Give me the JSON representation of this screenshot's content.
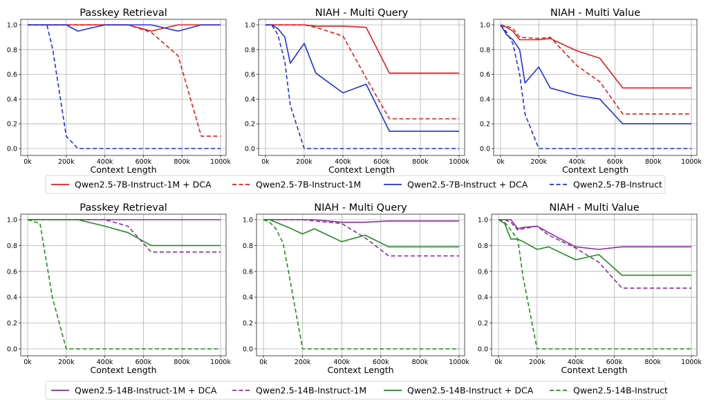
{
  "figure": {
    "legends": [
      {
        "entries": [
          {
            "label": "Qwen2.5-7B-Instruct-1M + DCA",
            "color": "#e31a1c",
            "style": "solid"
          },
          {
            "label": "Qwen2.5-7B-Instruct-1M",
            "color": "#e31a1c",
            "style": "dashed"
          },
          {
            "label": "Qwen2.5-7B-Instruct + DCA",
            "color": "#1f2fdc",
            "style": "solid"
          },
          {
            "label": "Qwen2.5-7B-Instruct",
            "color": "#1f2fdc",
            "style": "dashed"
          }
        ]
      },
      {
        "entries": [
          {
            "label": "Qwen2.5-14B-Instruct-1M + DCA",
            "color": "#8b2a9e",
            "style": "solid"
          },
          {
            "label": "Qwen2.5-14B-Instruct-1M",
            "color": "#8b2a9e",
            "style": "dashed"
          },
          {
            "label": "Qwen2.5-14B-Instruct + DCA",
            "color": "#1f8a1f",
            "style": "solid"
          },
          {
            "label": "Qwen2.5-14B-Instruct",
            "color": "#1f8a1f",
            "style": "dashed"
          }
        ]
      }
    ]
  },
  "chart_data": [
    {
      "type": "line",
      "title": "Passkey Retrieval",
      "xlabel": "Context Length",
      "ylabel": "",
      "xlim": [
        0,
        1000
      ],
      "ylim": [
        0,
        1.0
      ],
      "xticks": [
        "0k",
        "200k",
        "400k",
        "600k",
        "800k",
        "1000k"
      ],
      "yticks": [
        "0.0",
        "0.2",
        "0.4",
        "0.6",
        "0.8",
        "1.0"
      ],
      "grid": true,
      "series": [
        {
          "name": "Qwen2.5-7B-Instruct-1M + DCA",
          "color": "#e31a1c",
          "dashed": false,
          "x": [
            0,
            200,
            260,
            400,
            520,
            640,
            780,
            900,
            1000
          ],
          "y": [
            1.0,
            1.0,
            1.0,
            1.0,
            1.0,
            0.95,
            1.0,
            1.0,
            1.0
          ]
        },
        {
          "name": "Qwen2.5-7B-Instruct-1M",
          "color": "#e31a1c",
          "dashed": true,
          "x": [
            0,
            200,
            400,
            520,
            640,
            780,
            900,
            1000
          ],
          "y": [
            1.0,
            1.0,
            1.0,
            1.0,
            0.94,
            0.75,
            0.1,
            0.1
          ]
        },
        {
          "name": "Qwen2.5-7B-Instruct + DCA",
          "color": "#1f2fdc",
          "dashed": false,
          "x": [
            0,
            200,
            260,
            400,
            520,
            640,
            780,
            900,
            1000
          ],
          "y": [
            1.0,
            1.0,
            0.95,
            1.0,
            1.0,
            1.0,
            0.95,
            1.0,
            1.0
          ]
        },
        {
          "name": "Qwen2.5-7B-Instruct",
          "color": "#1f2fdc",
          "dashed": true,
          "x": [
            0,
            100,
            130,
            200,
            260,
            400,
            1000
          ],
          "y": [
            1.0,
            1.0,
            0.8,
            0.1,
            0.0,
            0.0,
            0.0
          ]
        }
      ]
    },
    {
      "type": "line",
      "title": "NIAH - Multi Query",
      "xlabel": "Context Length",
      "ylabel": "",
      "xlim": [
        0,
        1000
      ],
      "ylim": [
        0,
        1.0
      ],
      "xticks": [
        "0k",
        "200k",
        "400k",
        "600k",
        "800k",
        "1000k"
      ],
      "yticks": [
        "0.0",
        "0.2",
        "0.4",
        "0.6",
        "0.8",
        "1.0"
      ],
      "grid": true,
      "series": [
        {
          "name": "Qwen2.5-7B-Instruct-1M + DCA",
          "color": "#e31a1c",
          "dashed": false,
          "x": [
            0,
            64,
            200,
            260,
            400,
            520,
            640,
            1000
          ],
          "y": [
            1.0,
            1.0,
            1.0,
            0.99,
            0.99,
            0.98,
            0.61,
            0.61
          ]
        },
        {
          "name": "Qwen2.5-7B-Instruct-1M",
          "color": "#e31a1c",
          "dashed": true,
          "x": [
            0,
            64,
            200,
            260,
            400,
            520,
            640,
            1000
          ],
          "y": [
            1.0,
            1.0,
            1.0,
            0.98,
            0.91,
            0.57,
            0.24,
            0.24
          ]
        },
        {
          "name": "Qwen2.5-7B-Instruct + DCA",
          "color": "#1f2fdc",
          "dashed": false,
          "x": [
            0,
            32,
            64,
            100,
            128,
            200,
            260,
            400,
            520,
            640,
            1000
          ],
          "y": [
            1.0,
            1.0,
            0.97,
            0.9,
            0.69,
            0.85,
            0.61,
            0.45,
            0.52,
            0.14,
            0.14
          ]
        },
        {
          "name": "Qwen2.5-7B-Instruct",
          "color": "#1f2fdc",
          "dashed": true,
          "x": [
            0,
            32,
            64,
            100,
            128,
            200,
            260,
            1000
          ],
          "y": [
            1.0,
            1.0,
            0.92,
            0.7,
            0.35,
            0.0,
            0.0,
            0.0
          ]
        }
      ]
    },
    {
      "type": "line",
      "title": "NIAH - Multi Value",
      "xlabel": "Context Length",
      "ylabel": "",
      "xlim": [
        0,
        1000
      ],
      "ylim": [
        0,
        1.0
      ],
      "xticks": [
        "0k",
        "200k",
        "400k",
        "600k",
        "800k",
        "1000k"
      ],
      "yticks": [
        "0.0",
        "0.2",
        "0.4",
        "0.6",
        "0.8",
        "1.0"
      ],
      "grid": true,
      "series": [
        {
          "name": "Qwen2.5-7B-Instruct-1M + DCA",
          "color": "#e31a1c",
          "dashed": false,
          "x": [
            0,
            32,
            64,
            100,
            200,
            260,
            400,
            520,
            640,
            1000
          ],
          "y": [
            1.0,
            0.98,
            0.95,
            0.88,
            0.88,
            0.89,
            0.79,
            0.73,
            0.49,
            0.49
          ]
        },
        {
          "name": "Qwen2.5-7B-Instruct-1M",
          "color": "#e31a1c",
          "dashed": true,
          "x": [
            0,
            32,
            64,
            100,
            200,
            260,
            400,
            520,
            640,
            1000
          ],
          "y": [
            1.0,
            0.99,
            0.97,
            0.9,
            0.89,
            0.9,
            0.67,
            0.54,
            0.28,
            0.28
          ]
        },
        {
          "name": "Qwen2.5-7B-Instruct + DCA",
          "color": "#1f2fdc",
          "dashed": false,
          "x": [
            0,
            32,
            64,
            100,
            128,
            200,
            260,
            400,
            520,
            640,
            1000
          ],
          "y": [
            1.0,
            0.92,
            0.88,
            0.8,
            0.53,
            0.66,
            0.49,
            0.43,
            0.4,
            0.2,
            0.2
          ]
        },
        {
          "name": "Qwen2.5-7B-Instruct",
          "color": "#1f2fdc",
          "dashed": true,
          "x": [
            0,
            32,
            64,
            100,
            128,
            200,
            260,
            1000
          ],
          "y": [
            1.0,
            0.94,
            0.85,
            0.6,
            0.28,
            0.0,
            0.0,
            0.0
          ]
        }
      ]
    },
    {
      "type": "line",
      "title": "Passkey Retrieval",
      "xlabel": "Context Length",
      "ylabel": "",
      "xlim": [
        0,
        1000
      ],
      "ylim": [
        0,
        1.0
      ],
      "xticks": [
        "0k",
        "200k",
        "400k",
        "600k",
        "800k",
        "1000k"
      ],
      "yticks": [
        "0.0",
        "0.2",
        "0.4",
        "0.6",
        "0.8",
        "1.0"
      ],
      "grid": true,
      "series": [
        {
          "name": "Qwen2.5-14B-Instruct-1M + DCA",
          "color": "#8b2a9e",
          "dashed": false,
          "x": [
            0,
            200,
            400,
            640,
            1000
          ],
          "y": [
            1.0,
            1.0,
            1.0,
            1.0,
            1.0
          ]
        },
        {
          "name": "Qwen2.5-14B-Instruct-1M",
          "color": "#8b2a9e",
          "dashed": true,
          "x": [
            0,
            200,
            260,
            400,
            520,
            640,
            1000
          ],
          "y": [
            1.0,
            1.0,
            1.0,
            1.0,
            0.95,
            0.75,
            0.75
          ]
        },
        {
          "name": "Qwen2.5-14B-Instruct + DCA",
          "color": "#1f8a1f",
          "dashed": false,
          "x": [
            0,
            200,
            260,
            400,
            520,
            640,
            1000
          ],
          "y": [
            1.0,
            1.0,
            1.0,
            0.95,
            0.9,
            0.8,
            0.8
          ]
        },
        {
          "name": "Qwen2.5-14B-Instruct",
          "color": "#1f8a1f",
          "dashed": true,
          "x": [
            0,
            64,
            128,
            200,
            260,
            1000
          ],
          "y": [
            1.0,
            0.97,
            0.4,
            0.0,
            0.0,
            0.0
          ]
        }
      ]
    },
    {
      "type": "line",
      "title": "NIAH - Multi Query",
      "xlabel": "Context Length",
      "ylabel": "",
      "xlim": [
        0,
        1000
      ],
      "ylim": [
        0,
        1.0
      ],
      "xticks": [
        "0k",
        "200k",
        "400k",
        "600k",
        "800k",
        "1000k"
      ],
      "yticks": [
        "0.0",
        "0.2",
        "0.4",
        "0.6",
        "0.8",
        "1.0"
      ],
      "grid": true,
      "series": [
        {
          "name": "Qwen2.5-14B-Instruct-1M + DCA",
          "color": "#8b2a9e",
          "dashed": false,
          "x": [
            0,
            64,
            200,
            260,
            400,
            520,
            640,
            1000
          ],
          "y": [
            1.0,
            1.0,
            1.0,
            1.0,
            0.98,
            0.98,
            0.99,
            0.99
          ]
        },
        {
          "name": "Qwen2.5-14B-Instruct-1M",
          "color": "#8b2a9e",
          "dashed": true,
          "x": [
            0,
            64,
            200,
            260,
            400,
            520,
            640,
            1000
          ],
          "y": [
            1.0,
            1.0,
            1.0,
            0.99,
            0.97,
            0.86,
            0.72,
            0.72
          ]
        },
        {
          "name": "Qwen2.5-14B-Instruct + DCA",
          "color": "#1f8a1f",
          "dashed": false,
          "x": [
            0,
            32,
            64,
            128,
            200,
            260,
            400,
            520,
            640,
            1000
          ],
          "y": [
            1.0,
            1.0,
            0.98,
            0.94,
            0.89,
            0.93,
            0.83,
            0.88,
            0.79,
            0.79
          ]
        },
        {
          "name": "Qwen2.5-14B-Instruct",
          "color": "#1f8a1f",
          "dashed": true,
          "x": [
            0,
            32,
            64,
            100,
            128,
            200,
            260,
            1000
          ],
          "y": [
            1.0,
            0.98,
            0.93,
            0.82,
            0.6,
            0.0,
            0.0,
            0.0
          ]
        }
      ]
    },
    {
      "type": "line",
      "title": "NIAH - Multi Value",
      "xlabel": "Context Length",
      "ylabel": "",
      "xlim": [
        0,
        1000
      ],
      "ylim": [
        0,
        1.0
      ],
      "xticks": [
        "0k",
        "200k",
        "400k",
        "600k",
        "800k",
        "1000k"
      ],
      "yticks": [
        "0.0",
        "0.2",
        "0.4",
        "0.6",
        "0.8",
        "1.0"
      ],
      "grid": true,
      "series": [
        {
          "name": "Qwen2.5-14B-Instruct-1M + DCA",
          "color": "#8b2a9e",
          "dashed": false,
          "x": [
            0,
            32,
            64,
            100,
            128,
            200,
            260,
            400,
            520,
            640,
            1000
          ],
          "y": [
            1.0,
            1.0,
            1.0,
            0.93,
            0.94,
            0.95,
            0.9,
            0.79,
            0.77,
            0.79,
            0.79
          ]
        },
        {
          "name": "Qwen2.5-14B-Instruct-1M",
          "color": "#8b2a9e",
          "dashed": true,
          "x": [
            0,
            32,
            64,
            100,
            128,
            200,
            260,
            400,
            520,
            640,
            1000
          ],
          "y": [
            1.0,
            1.0,
            0.98,
            0.92,
            0.93,
            0.95,
            0.88,
            0.78,
            0.67,
            0.47,
            0.47
          ]
        },
        {
          "name": "Qwen2.5-14B-Instruct + DCA",
          "color": "#1f8a1f",
          "dashed": false,
          "x": [
            0,
            32,
            64,
            100,
            128,
            200,
            260,
            400,
            520,
            640,
            1000
          ],
          "y": [
            1.0,
            0.97,
            0.85,
            0.85,
            0.83,
            0.77,
            0.79,
            0.69,
            0.73,
            0.57,
            0.57
          ]
        },
        {
          "name": "Qwen2.5-14B-Instruct",
          "color": "#1f8a1f",
          "dashed": true,
          "x": [
            0,
            32,
            64,
            100,
            128,
            200,
            260,
            1000
          ],
          "y": [
            1.0,
            0.98,
            0.92,
            0.85,
            0.55,
            0.0,
            0.0,
            0.0
          ]
        }
      ]
    }
  ]
}
